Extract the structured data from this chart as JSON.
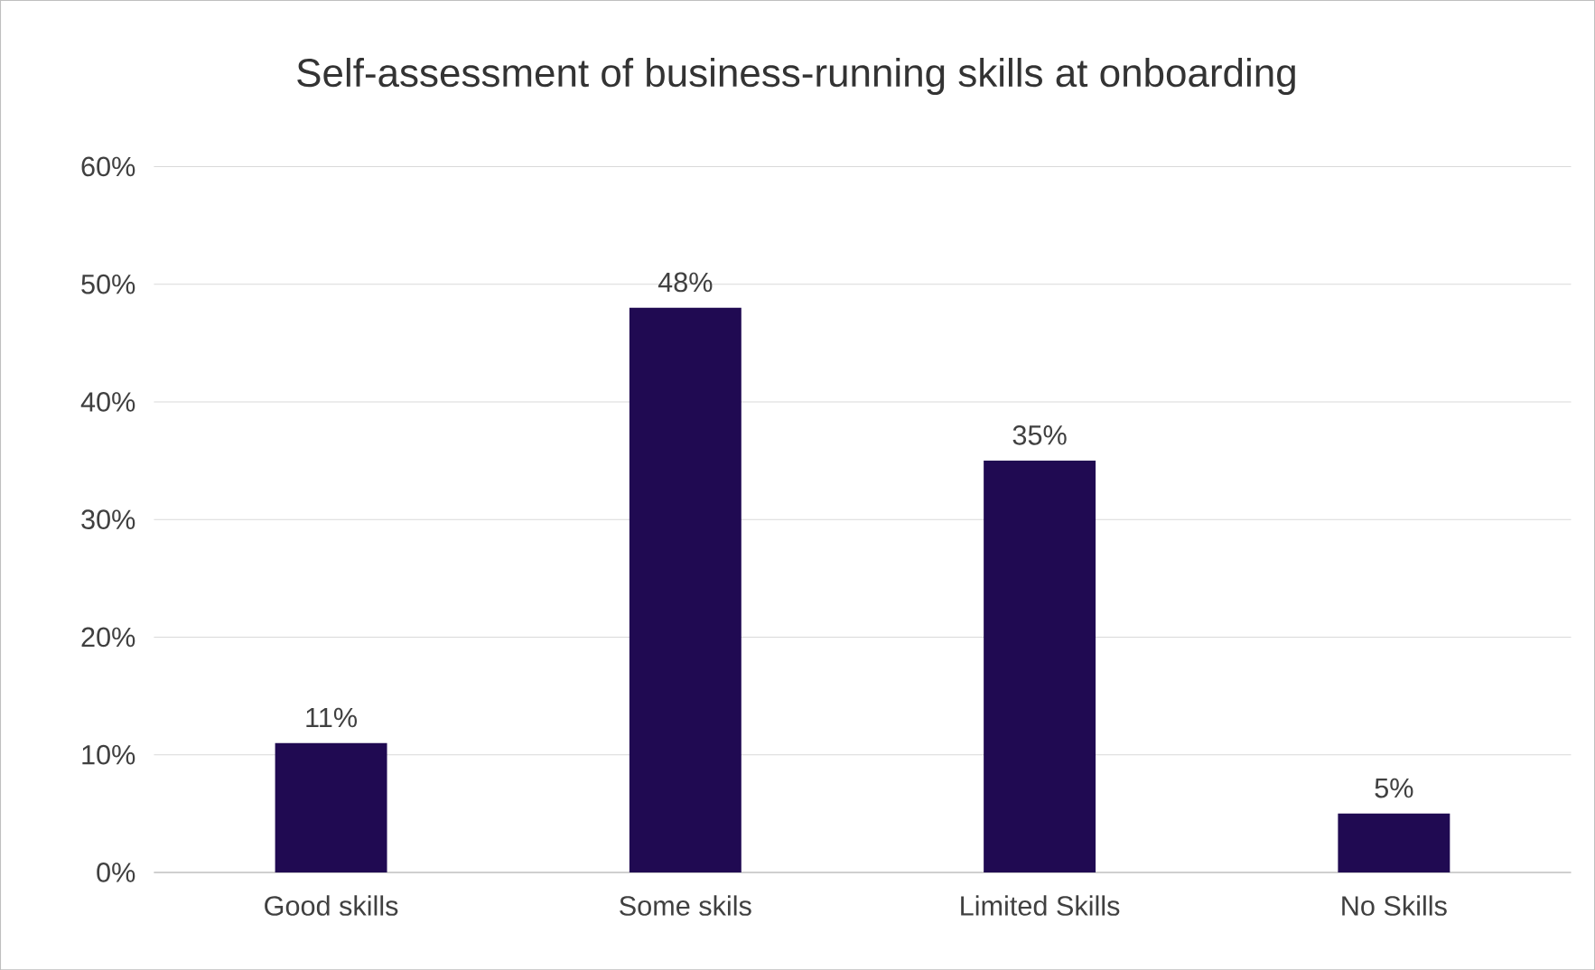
{
  "chart_data": {
    "type": "bar",
    "title": "Self-assessment of business-running skills at onboarding",
    "categories": [
      "Good skills",
      "Some skils",
      "Limited Skills",
      "No Skills"
    ],
    "values": [
      11,
      48,
      35,
      5
    ],
    "value_labels": [
      "11%",
      "48%",
      "35%",
      "5%"
    ],
    "color": "#200a52",
    "ylim": [
      0,
      60
    ],
    "yticks": [
      {
        "value": 0,
        "label": "0%"
      },
      {
        "value": 10,
        "label": "10%"
      },
      {
        "value": 20,
        "label": "20%"
      },
      {
        "value": 30,
        "label": "30%"
      },
      {
        "value": 40,
        "label": "40%"
      },
      {
        "value": 50,
        "label": "50%"
      },
      {
        "value": 60,
        "label": "60%"
      }
    ],
    "grid": "y"
  }
}
